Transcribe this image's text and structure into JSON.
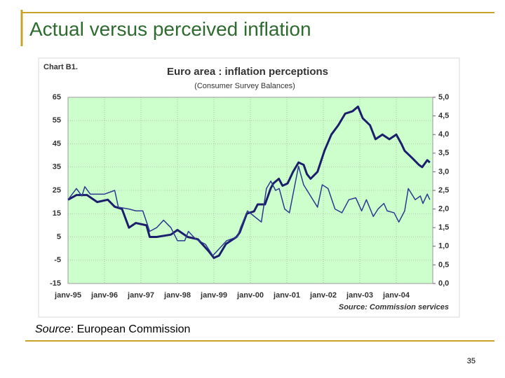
{
  "slide": {
    "title": "Actual versus perceived inflation",
    "source_label": "Source",
    "source_text": ": European Commission",
    "page_number": 35
  },
  "chart_data": {
    "type": "line",
    "chart_label": "Chart B1.",
    "title": "Euro area : inflation perceptions",
    "subtitle": "(Consumer Survey Balances)",
    "source": "Source: Commission services",
    "background": "#ccffcc",
    "grid": true,
    "xlim": [
      1995,
      2005
    ],
    "xticks": [
      {
        "value": 1995,
        "label": "janv-95"
      },
      {
        "value": 1996,
        "label": "janv-96"
      },
      {
        "value": 1997,
        "label": "janv-97"
      },
      {
        "value": 1998,
        "label": "janv-98"
      },
      {
        "value": 1999,
        "label": "janv-99"
      },
      {
        "value": 2000,
        "label": "janv-00"
      },
      {
        "value": 2001,
        "label": "janv-01"
      },
      {
        "value": 2002,
        "label": "janv-02"
      },
      {
        "value": 2003,
        "label": "janv-03"
      },
      {
        "value": 2004,
        "label": "janv-04"
      }
    ],
    "ylim": [
      -15,
      65
    ],
    "yticks": [
      65,
      55,
      45,
      35,
      25,
      15,
      5,
      -5,
      -15
    ],
    "y2lim": [
      0,
      5
    ],
    "y2ticks": [
      {
        "value": 5,
        "label": "5,0"
      },
      {
        "value": 4.5,
        "label": "4,5"
      },
      {
        "value": 4,
        "label": "4,0"
      },
      {
        "value": 3.5,
        "label": "3,5"
      },
      {
        "value": 3,
        "label": "3,0"
      },
      {
        "value": 2.5,
        "label": "2,5"
      },
      {
        "value": 2,
        "label": "2,0"
      },
      {
        "value": 1.5,
        "label": "1,5"
      },
      {
        "value": 1,
        "label": "1,0"
      },
      {
        "value": 0.5,
        "label": "0,5"
      },
      {
        "value": 0,
        "label": "0,0"
      }
    ],
    "series": [
      {
        "color": "#1b1f6b",
        "x": [
          1995.0,
          1995.23,
          1995.52,
          1995.8,
          1996.09,
          1996.28,
          1996.48,
          1996.67,
          1996.86,
          1997.15,
          1997.24,
          1997.43,
          1997.82,
          1998.0,
          1998.28,
          1998.56,
          1998.85,
          1999.0,
          1999.14,
          1999.33,
          1999.62,
          1999.71,
          1999.9,
          2000.1,
          2000.2,
          2000.4,
          2000.56,
          2000.63,
          2000.78,
          2000.88,
          2001.02,
          2001.17,
          2001.32,
          2001.46,
          2001.55,
          2001.65,
          2001.84,
          2002.03,
          2002.22,
          2002.41,
          2002.6,
          2002.8,
          2002.95,
          2003.08,
          2003.28,
          2003.43,
          2003.62,
          2003.81,
          2004.0,
          2004.14,
          2004.23,
          2004.43,
          2004.62,
          2004.71,
          2004.85,
          2004.92
        ],
        "values": [
          21,
          23,
          23,
          20,
          21,
          18,
          17,
          9,
          11,
          10,
          5,
          5,
          6,
          8,
          5,
          4,
          -1,
          -4,
          -3,
          2,
          5,
          7,
          15,
          16,
          19,
          19,
          26,
          28,
          30,
          27,
          28,
          33,
          37,
          36,
          32,
          30,
          33,
          42,
          49,
          53,
          58,
          59,
          61,
          56,
          53,
          47,
          49,
          47,
          49,
          45,
          42,
          39,
          36,
          35,
          38,
          37
        ]
      },
      {
        "color": "#2b3a8f",
        "axis": "y2",
        "x": [
          1995.0,
          1995.23,
          1995.38,
          1995.46,
          1995.61,
          1996.0,
          1996.28,
          1996.38,
          1996.67,
          1996.86,
          1997.05,
          1997.24,
          1997.43,
          1997.62,
          1997.82,
          1998.0,
          1998.2,
          1998.3,
          1998.49,
          1998.77,
          1998.97,
          1999.16,
          1999.35,
          1999.64,
          1999.73,
          1999.92,
          2000.11,
          2000.3,
          2000.44,
          2000.56,
          2000.69,
          2000.79,
          2000.94,
          2001.07,
          2001.32,
          2001.46,
          2001.65,
          2001.84,
          2001.97,
          2002.13,
          2002.32,
          2002.51,
          2002.7,
          2002.89,
          2003.05,
          2003.18,
          2003.37,
          2003.5,
          2003.66,
          2003.75,
          2003.94,
          2004.07,
          2004.23,
          2004.33,
          2004.52,
          2004.66,
          2004.73,
          2004.85,
          2004.92
        ],
        "values": [
          2.25,
          2.55,
          2.35,
          2.6,
          2.4,
          2.4,
          2.5,
          2.05,
          2.0,
          1.95,
          1.95,
          1.4,
          1.5,
          1.7,
          1.5,
          1.15,
          1.15,
          1.4,
          1.2,
          1.05,
          0.75,
          0.95,
          1.15,
          1.25,
          1.5,
          1.95,
          1.8,
          1.65,
          2.55,
          2.75,
          2.5,
          2.55,
          2.0,
          1.9,
          3.15,
          2.65,
          2.35,
          2.05,
          2.65,
          2.55,
          2.0,
          1.9,
          2.25,
          2.3,
          1.95,
          2.25,
          1.8,
          2.0,
          2.15,
          1.95,
          1.9,
          1.65,
          1.95,
          2.55,
          2.25,
          2.35,
          2.15,
          2.4,
          2.25
        ]
      }
    ]
  }
}
